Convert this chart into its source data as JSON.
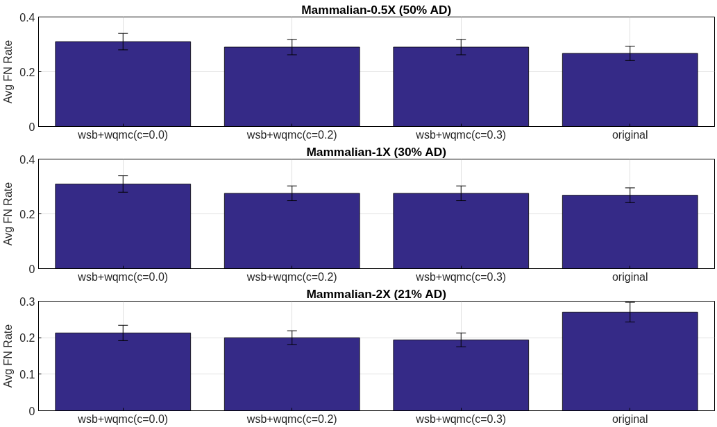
{
  "chart_data": [
    {
      "type": "bar",
      "title": "Mammalian-0.5X (50% AD)",
      "ylabel": "Avg FN Rate",
      "categories": [
        "wsb+wqmc(c=0.0)",
        "wsb+wqmc(c=0.2)",
        "wsb+wqmc(c=0.3)",
        "original"
      ],
      "series": [
        {
          "color": "#352a87",
          "values": [
            0.31,
            0.29,
            0.29,
            0.267
          ],
          "errors": [
            0.03,
            0.028,
            0.028,
            0.026
          ]
        }
      ],
      "ylim": [
        0,
        0.4
      ],
      "yticks": [
        0,
        0.2,
        0.4
      ],
      "grid": true
    },
    {
      "type": "bar",
      "title": "Mammalian-1X (30% AD)",
      "ylabel": "Avg FN Rate",
      "categories": [
        "wsb+wqmc(c=0.0)",
        "wsb+wqmc(c=0.2)",
        "wsb+wqmc(c=0.3)",
        "original"
      ],
      "series": [
        {
          "color": "#352a87",
          "values": [
            0.309,
            0.275,
            0.275,
            0.268
          ],
          "errors": [
            0.03,
            0.027,
            0.027,
            0.027
          ]
        }
      ],
      "ylim": [
        0,
        0.4
      ],
      "yticks": [
        0,
        0.2,
        0.4
      ],
      "grid": true
    },
    {
      "type": "bar",
      "title": "Mammalian-2X (21% AD)",
      "ylabel": "Avg FN Rate",
      "categories": [
        "wsb+wqmc(c=0.0)",
        "wsb+wqmc(c=0.2)",
        "wsb+wqmc(c=0.3)",
        "original"
      ],
      "series": [
        {
          "color": "#352a87",
          "values": [
            0.213,
            0.2,
            0.194,
            0.27
          ],
          "errors": [
            0.021,
            0.019,
            0.019,
            0.027
          ]
        }
      ],
      "ylim": [
        0,
        0.3
      ],
      "yticks": [
        0,
        0.1,
        0.2,
        0.3
      ],
      "grid": true
    }
  ]
}
